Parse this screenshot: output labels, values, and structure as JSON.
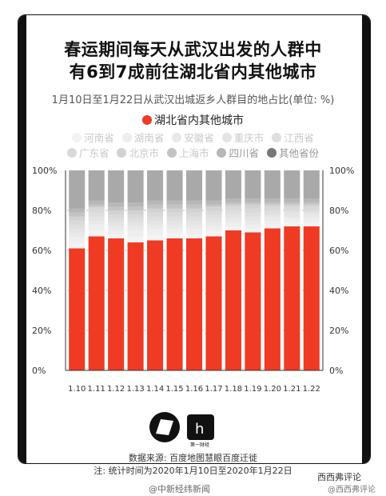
{
  "title_line1": "春运期间每天从武汉出发的人群中",
  "title_line2": "有6到7成前往湖北省内其他城市",
  "subtitle": "1月10日至1月22日从武汉出城返乡人群目的地占比(单位: %)",
  "legend_main": "湖北省内其他城市",
  "legend_row1": [
    "河南省",
    "湖南省",
    "安徽省",
    "重庆市",
    "江西省"
  ],
  "legend_row2": [
    "广东省",
    "北京市",
    "上海市",
    "四川省",
    "其他省份"
  ],
  "source_line1": "数据来源: 百度地图慧眼百度迁徙",
  "source_line2": "注: 统计时间为2020年1月10日至2020年1月22日",
  "watermark_left": "@中新经纬新闻",
  "watermark_right": "西西弗评论",
  "watermark_right2": "@西西弗评论",
  "logo_caption": "第一财经",
  "colors": {
    "hubei": "#ef3a24",
    "light_series": [
      "#f3f3f3",
      "#eeeeee",
      "#e9e9e9",
      "#e4e4e4",
      "#dfdfdf",
      "#d9d9d9",
      "#d2d2d2"
    ],
    "dark_series": [
      "#c3c3c3",
      "#b7b7b7",
      "#a9a9a9"
    ],
    "axis": "#333333"
  },
  "chart_data": {
    "type": "bar",
    "stacked": true,
    "categories": [
      "1.10",
      "1.11",
      "1.12",
      "1.13",
      "1.14",
      "1.15",
      "1.16",
      "1.17",
      "1.18",
      "1.19",
      "1.20",
      "1.21",
      "1.22"
    ],
    "y_ticks": [
      "0%",
      "20%",
      "40%",
      "60%",
      "80%",
      "100%"
    ],
    "ylim": [
      0,
      100
    ],
    "series": [
      {
        "name": "湖北省内其他城市",
        "values": [
          61,
          67,
          66,
          64,
          65,
          66,
          66,
          67,
          70,
          69,
          71,
          72,
          72
        ]
      },
      {
        "name": "河南省",
        "values": [
          3,
          3,
          2,
          3,
          3,
          3,
          2,
          3,
          2,
          2,
          2,
          2,
          2
        ]
      },
      {
        "name": "湖南省",
        "values": [
          3,
          3,
          2,
          3,
          3,
          2,
          3,
          2,
          2,
          2,
          2,
          2,
          2
        ]
      },
      {
        "name": "安徽省",
        "values": [
          2,
          2,
          2,
          2,
          2,
          2,
          2,
          2,
          2,
          2,
          2,
          1,
          2
        ]
      },
      {
        "name": "重庆市",
        "values": [
          2,
          2,
          2,
          2,
          2,
          2,
          2,
          2,
          2,
          2,
          1,
          2,
          1
        ]
      },
      {
        "name": "江西省",
        "values": [
          2,
          2,
          2,
          2,
          2,
          2,
          2,
          2,
          2,
          2,
          2,
          1,
          1
        ]
      },
      {
        "name": "广东省",
        "values": [
          2,
          2,
          2,
          2,
          2,
          2,
          2,
          2,
          2,
          2,
          2,
          2,
          2
        ]
      },
      {
        "name": "北京市",
        "values": [
          2,
          1,
          2,
          2,
          2,
          2,
          2,
          2,
          1,
          2,
          1,
          1,
          1
        ]
      },
      {
        "name": "上海市",
        "values": [
          2,
          1,
          2,
          2,
          2,
          2,
          2,
          1,
          1,
          1,
          1,
          1,
          1
        ]
      },
      {
        "name": "四川省",
        "values": [
          2,
          2,
          2,
          2,
          2,
          2,
          2,
          2,
          2,
          2,
          2,
          2,
          2
        ]
      },
      {
        "name": "其他省份",
        "values": [
          19,
          15,
          16,
          16,
          15,
          15,
          15,
          15,
          14,
          14,
          14,
          14,
          14
        ]
      }
    ]
  }
}
